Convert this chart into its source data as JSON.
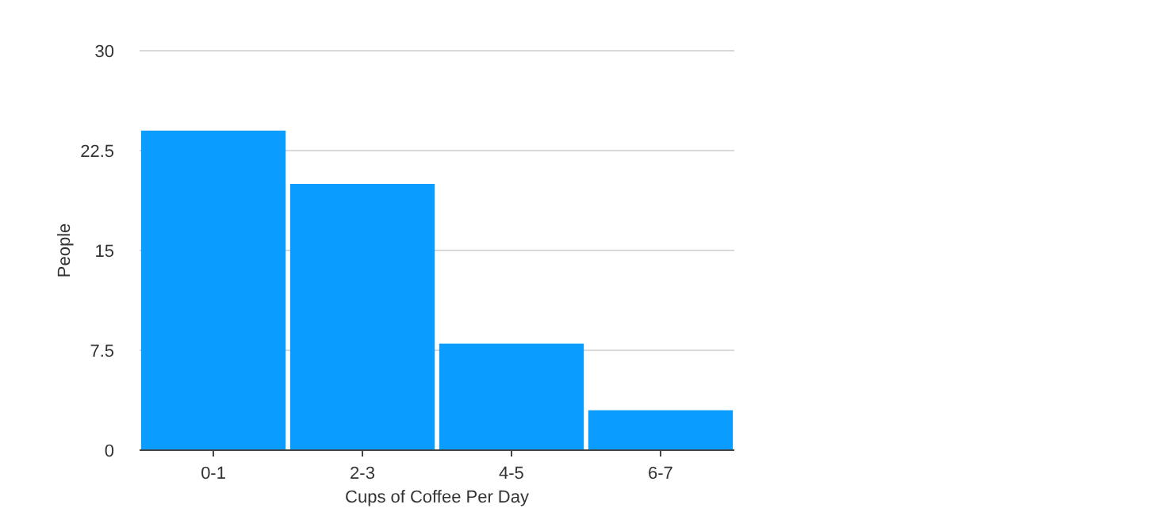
{
  "chart_data": {
    "type": "bar",
    "xlabel": "Cups of Coffee Per Day",
    "ylabel": "People",
    "categories": [
      "0-1",
      "2-3",
      "4-5",
      "6-7"
    ],
    "values": [
      24,
      20,
      8,
      3
    ],
    "color": "#0a9cff",
    "ylim": [
      0,
      30
    ],
    "yticks": [
      0,
      7.5,
      15,
      22.5,
      30
    ],
    "grid": "y"
  }
}
